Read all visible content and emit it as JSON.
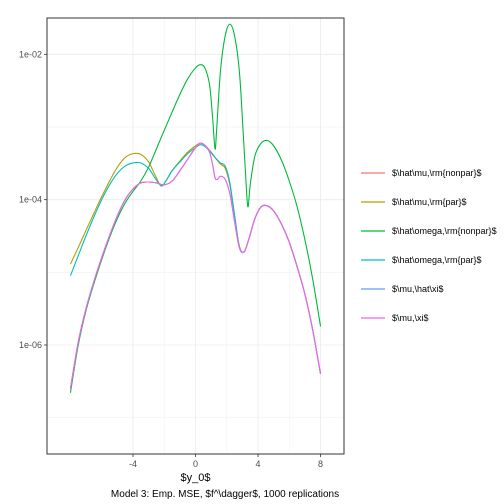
{
  "chart_data": {
    "type": "line",
    "title": "",
    "caption": "Model 3: Emp. MSE, $f^\\dagger$, 1000 replications",
    "xlabel": "$y_0$",
    "ylabel": "",
    "xlim": [
      -9.5,
      9.5
    ],
    "ylim_log10": [
      -7.5,
      -1.5
    ],
    "y_scale": "log10",
    "x_ticks": [
      {
        "value": -4,
        "label": "-4"
      },
      {
        "value": 0,
        "label": "0"
      },
      {
        "value": 4,
        "label": "4"
      },
      {
        "value": 8,
        "label": "8"
      }
    ],
    "y_ticks": [
      {
        "value": 1e-06,
        "label": "1e-06"
      },
      {
        "value": 0.0001,
        "label": "1e-04"
      },
      {
        "value": 0.01,
        "label": "1e-02"
      }
    ],
    "grid": true,
    "legend_position": "right",
    "series": [
      {
        "name": "$\\hat\\mu,\\rm{nonpar}$",
        "color": "#F8766D",
        "points": [
          [
            -8,
            2.5e-07
          ],
          [
            -7.5,
            1.1e-06
          ],
          [
            -7,
            3.2e-06
          ],
          [
            -6.5,
            7.5e-06
          ],
          [
            -6,
            1.6e-05
          ],
          [
            -5.5,
            3.2e-05
          ],
          [
            -5,
            6e-05
          ],
          [
            -4.5,
            0.0001
          ],
          [
            -4,
            0.00014
          ],
          [
            -3.5,
            0.00017
          ],
          [
            -3,
            0.000175
          ],
          [
            -2.5,
            0.00017
          ],
          [
            -2,
            0.00016
          ],
          [
            -1.5,
            0.00018
          ],
          [
            -1,
            0.00025
          ],
          [
            -0.5,
            0.00036
          ],
          [
            0,
            0.00052
          ],
          [
            0.3,
            0.0006
          ],
          [
            0.6,
            0.00056
          ],
          [
            1,
            0.00045
          ],
          [
            1.3,
            0.00037
          ],
          [
            1.6,
            0.00031
          ],
          [
            1.9,
            0.00027
          ],
          [
            2.2,
            0.00016
          ],
          [
            2.5,
            6e-05
          ],
          [
            2.8,
            2.3e-05
          ],
          [
            3.1,
            1.9e-05
          ],
          [
            3.4,
            2.8e-05
          ],
          [
            3.8,
            5.5e-05
          ],
          [
            4.2,
            8e-05
          ],
          [
            4.6,
            8.2e-05
          ],
          [
            5,
            7e-05
          ],
          [
            5.5,
            4.6e-05
          ],
          [
            6,
            2.6e-05
          ],
          [
            6.5,
            1.2e-05
          ],
          [
            7,
            5e-06
          ],
          [
            7.5,
            1.6e-06
          ],
          [
            8,
            4e-07
          ]
        ]
      },
      {
        "name": "$\\hat\\mu,\\rm{par}$",
        "color": "#B79F00",
        "points": [
          [
            -8,
            1.3e-05
          ],
          [
            -7.5,
            2.2e-05
          ],
          [
            -7,
            3.8e-05
          ],
          [
            -6.5,
            6.5e-05
          ],
          [
            -6,
            0.00011
          ],
          [
            -5.5,
            0.00018
          ],
          [
            -5,
            0.00028
          ],
          [
            -4.5,
            0.00038
          ],
          [
            -4,
            0.00043
          ],
          [
            -3.5,
            0.00042
          ],
          [
            -3,
            0.00033
          ],
          [
            -2.6,
            0.00022
          ],
          [
            -2.2,
            0.000155
          ],
          [
            -1.9,
            0.00018
          ],
          [
            -1.5,
            0.00025
          ],
          [
            -1,
            0.00034
          ],
          [
            -0.5,
            0.00045
          ],
          [
            0,
            0.00055
          ],
          [
            0.3,
            0.0006
          ],
          [
            0.6,
            0.00056
          ],
          [
            1,
            0.00045
          ],
          [
            1.3,
            0.00037
          ],
          [
            1.6,
            0.00031
          ],
          [
            1.9,
            0.00027
          ],
          [
            2.2,
            0.00016
          ],
          [
            2.5,
            6e-05
          ],
          [
            2.8,
            2.3e-05
          ],
          [
            3.1,
            1.9e-05
          ],
          [
            3.4,
            2.8e-05
          ],
          [
            3.8,
            5.5e-05
          ],
          [
            4.2,
            8e-05
          ],
          [
            4.6,
            8.2e-05
          ],
          [
            5,
            7e-05
          ],
          [
            5.5,
            4.6e-05
          ],
          [
            6,
            2.6e-05
          ],
          [
            6.5,
            1.2e-05
          ],
          [
            7,
            5e-06
          ],
          [
            7.5,
            1.6e-06
          ],
          [
            8,
            4e-07
          ]
        ]
      },
      {
        "name": "$\\hat\\omega,\\rm{nonpar}$",
        "color": "#00BA38",
        "points": [
          [
            -8,
            2.2e-07
          ],
          [
            -7.5,
            1e-06
          ],
          [
            -7,
            3e-06
          ],
          [
            -6.5,
            7e-06
          ],
          [
            -6,
            1.5e-05
          ],
          [
            -5.5,
            3e-05
          ],
          [
            -5,
            5.5e-05
          ],
          [
            -4.5,
            9e-05
          ],
          [
            -4,
            0.00013
          ],
          [
            -3.5,
            0.00018
          ],
          [
            -3,
            0.00028
          ],
          [
            -2.5,
            0.0005
          ],
          [
            -2,
            0.0009
          ],
          [
            -1.5,
            0.0016
          ],
          [
            -1,
            0.0028
          ],
          [
            -0.5,
            0.0046
          ],
          [
            0,
            0.0065
          ],
          [
            0.3,
            0.0072
          ],
          [
            0.6,
            0.0065
          ],
          [
            0.9,
            0.0038
          ],
          [
            1.1,
            0.0013
          ],
          [
            1.25,
            0.0005
          ],
          [
            1.35,
            0.0009
          ],
          [
            1.6,
            0.006
          ],
          [
            1.9,
            0.018
          ],
          [
            2.2,
            0.026
          ],
          [
            2.5,
            0.018
          ],
          [
            2.8,
            0.006
          ],
          [
            3.0,
            0.0013
          ],
          [
            3.2,
            0.00023
          ],
          [
            3.35,
            8e-05
          ],
          [
            3.5,
            0.00016
          ],
          [
            3.8,
            0.0004
          ],
          [
            4.2,
            0.0006
          ],
          [
            4.6,
            0.00065
          ],
          [
            5,
            0.00055
          ],
          [
            5.5,
            0.00035
          ],
          [
            6,
            0.00018
          ],
          [
            6.5,
            8e-05
          ],
          [
            7,
            2.8e-05
          ],
          [
            7.5,
            8e-06
          ],
          [
            8,
            1.8e-06
          ]
        ]
      },
      {
        "name": "$\\hat\\omega,\\rm{par}$",
        "color": "#00BFC4",
        "points": [
          [
            -8,
            9e-06
          ],
          [
            -7.5,
            1.7e-05
          ],
          [
            -7,
            3.2e-05
          ],
          [
            -6.5,
            5.8e-05
          ],
          [
            -6,
            0.0001
          ],
          [
            -5.5,
            0.00016
          ],
          [
            -5,
            0.00023
          ],
          [
            -4.5,
            0.00029
          ],
          [
            -4,
            0.00032
          ],
          [
            -3.5,
            0.00032
          ],
          [
            -3,
            0.00027
          ],
          [
            -2.6,
            0.0002
          ],
          [
            -2.2,
            0.000155
          ],
          [
            -1.9,
            0.00018
          ],
          [
            -1.5,
            0.00025
          ],
          [
            -1,
            0.00033
          ],
          [
            -0.5,
            0.00043
          ],
          [
            0,
            0.00052
          ],
          [
            0.3,
            0.00057
          ],
          [
            0.6,
            0.00054
          ],
          [
            1,
            0.00044
          ],
          [
            1.3,
            0.00037
          ],
          [
            1.6,
            0.00032
          ],
          [
            1.9,
            0.00029
          ],
          [
            2.2,
            0.00017
          ],
          [
            2.5,
            6e-05
          ],
          [
            2.8,
            2.3e-05
          ],
          [
            3.1,
            1.9e-05
          ],
          [
            3.4,
            2.8e-05
          ],
          [
            3.8,
            5.5e-05
          ],
          [
            4.2,
            8e-05
          ],
          [
            4.6,
            8.2e-05
          ],
          [
            5,
            7e-05
          ],
          [
            5.5,
            4.6e-05
          ],
          [
            6,
            2.6e-05
          ],
          [
            6.5,
            1.2e-05
          ],
          [
            7,
            5e-06
          ],
          [
            7.5,
            1.6e-06
          ],
          [
            8,
            4e-07
          ]
        ]
      },
      {
        "name": "$\\mu,\\hat\\xi$",
        "color": "#619CFF",
        "points": [
          [
            -8,
            2.5e-07
          ],
          [
            -7.5,
            1.1e-06
          ],
          [
            -7,
            3.2e-06
          ],
          [
            -6.5,
            7.5e-06
          ],
          [
            -6,
            1.6e-05
          ],
          [
            -5.5,
            3.2e-05
          ],
          [
            -5,
            6e-05
          ],
          [
            -4.5,
            0.0001
          ],
          [
            -4,
            0.00014
          ],
          [
            -3.5,
            0.00017
          ],
          [
            -3,
            0.000175
          ],
          [
            -2.5,
            0.00017
          ],
          [
            -2,
            0.00016
          ],
          [
            -1.5,
            0.00018
          ],
          [
            -1,
            0.00025
          ],
          [
            -0.5,
            0.00036
          ],
          [
            0,
            0.00052
          ],
          [
            0.3,
            0.0006
          ],
          [
            0.6,
            0.00056
          ],
          [
            0.9,
            0.00045
          ],
          [
            1.1,
            0.0003
          ],
          [
            1.25,
            0.0002
          ],
          [
            1.4,
            0.00019
          ],
          [
            1.6,
            0.00021
          ],
          [
            1.9,
            0.00019
          ],
          [
            2.2,
            0.00012
          ],
          [
            2.5,
            5e-05
          ],
          [
            2.8,
            2.2e-05
          ],
          [
            3.1,
            1.9e-05
          ],
          [
            3.4,
            2.8e-05
          ],
          [
            3.8,
            5.5e-05
          ],
          [
            4.2,
            8e-05
          ],
          [
            4.6,
            8.2e-05
          ],
          [
            5,
            7e-05
          ],
          [
            5.5,
            4.6e-05
          ],
          [
            6,
            2.6e-05
          ],
          [
            6.5,
            1.2e-05
          ],
          [
            7,
            5e-06
          ],
          [
            7.5,
            1.6e-06
          ],
          [
            8,
            4e-07
          ]
        ]
      },
      {
        "name": "$\\mu,\\xi$",
        "color": "#F564E3",
        "points": [
          [
            -8,
            2.5e-07
          ],
          [
            -7.5,
            1.1e-06
          ],
          [
            -7,
            3.2e-06
          ],
          [
            -6.5,
            7.5e-06
          ],
          [
            -6,
            1.6e-05
          ],
          [
            -5.5,
            3.2e-05
          ],
          [
            -5,
            6e-05
          ],
          [
            -4.5,
            0.0001
          ],
          [
            -4,
            0.00014
          ],
          [
            -3.5,
            0.00017
          ],
          [
            -3,
            0.000175
          ],
          [
            -2.5,
            0.00017
          ],
          [
            -2,
            0.00016
          ],
          [
            -1.5,
            0.00018
          ],
          [
            -1,
            0.00025
          ],
          [
            -0.5,
            0.00036
          ],
          [
            0,
            0.00052
          ],
          [
            0.3,
            0.0006
          ],
          [
            0.6,
            0.00056
          ],
          [
            0.9,
            0.00045
          ],
          [
            1.1,
            0.0003
          ],
          [
            1.25,
            0.0002
          ],
          [
            1.4,
            0.00019
          ],
          [
            1.6,
            0.00021
          ],
          [
            1.9,
            0.00019
          ],
          [
            2.2,
            0.00012
          ],
          [
            2.5,
            5e-05
          ],
          [
            2.8,
            2.2e-05
          ],
          [
            3.1,
            1.9e-05
          ],
          [
            3.4,
            2.8e-05
          ],
          [
            3.8,
            5.5e-05
          ],
          [
            4.2,
            8e-05
          ],
          [
            4.6,
            8.2e-05
          ],
          [
            5,
            7e-05
          ],
          [
            5.5,
            4.6e-05
          ],
          [
            6,
            2.6e-05
          ],
          [
            6.5,
            1.2e-05
          ],
          [
            7,
            5e-06
          ],
          [
            7.5,
            1.6e-06
          ],
          [
            8,
            4e-07
          ]
        ]
      }
    ]
  }
}
